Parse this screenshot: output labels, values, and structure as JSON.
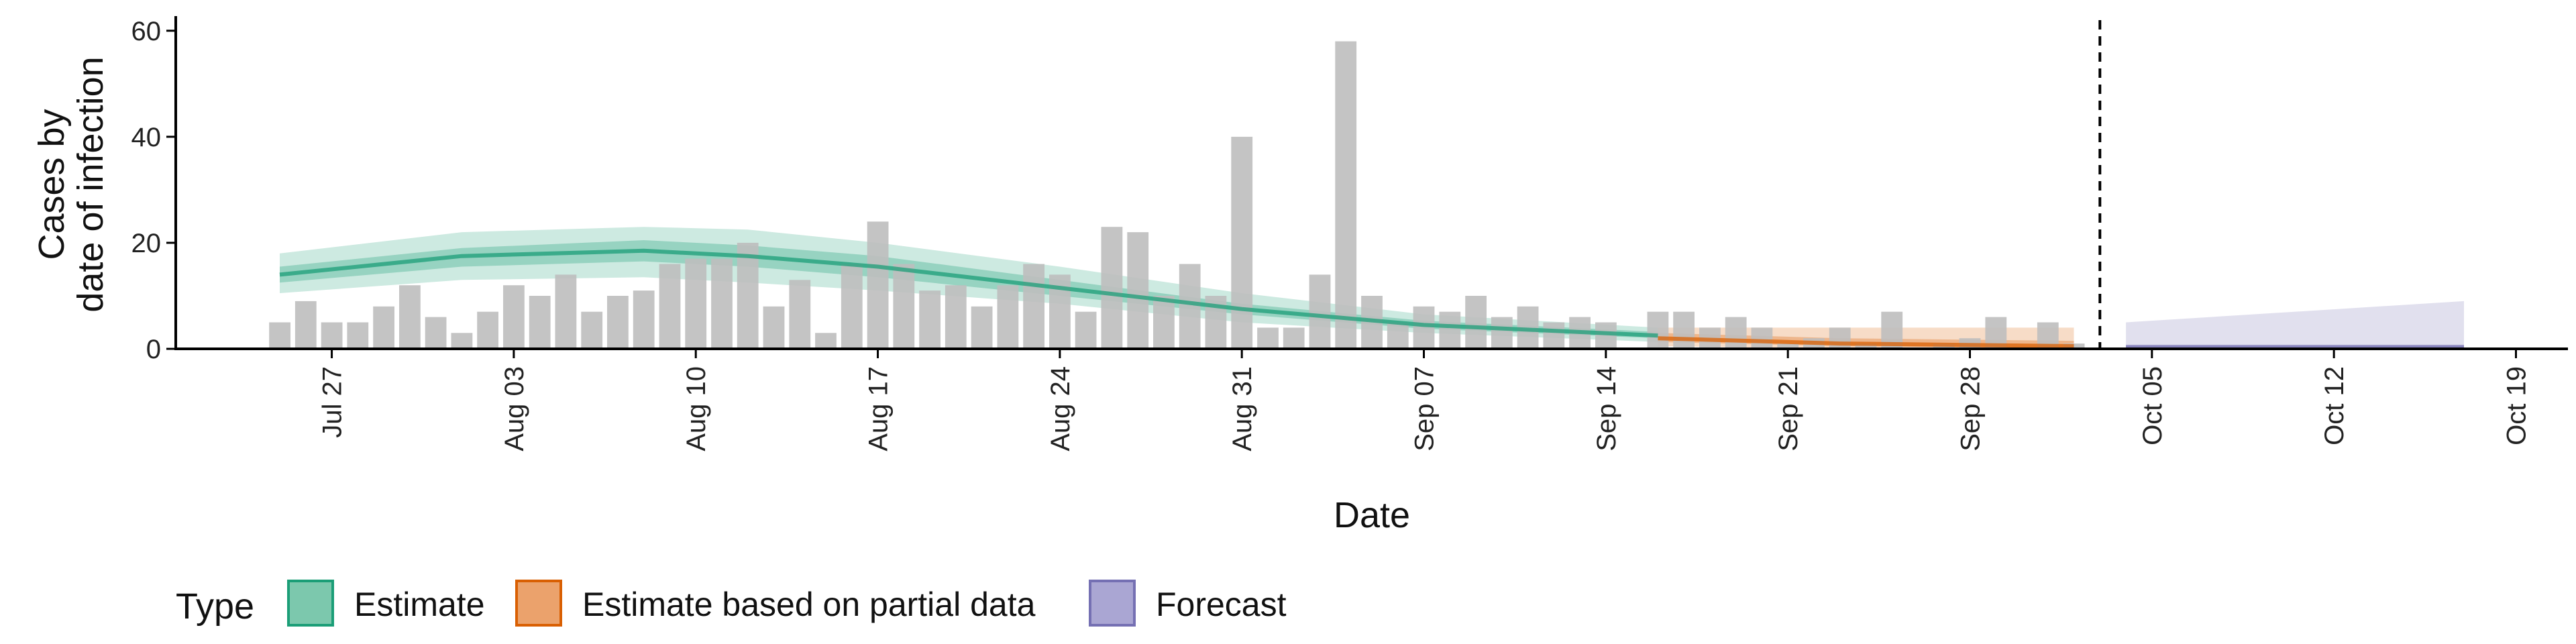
{
  "chart_data": {
    "type": "bar",
    "xlabel": "Date",
    "ylabel_lines": [
      "Cases by",
      "date of infection"
    ],
    "ylim": [
      0,
      62
    ],
    "yticks": [
      0,
      20,
      40,
      60
    ],
    "xlim": [
      "2020-07-21",
      "2020-10-21"
    ],
    "xticks": [
      {
        "date": "2020-07-27",
        "label": "Jul 27"
      },
      {
        "date": "2020-08-03",
        "label": "Aug 03"
      },
      {
        "date": "2020-08-10",
        "label": "Aug 10"
      },
      {
        "date": "2020-08-17",
        "label": "Aug 17"
      },
      {
        "date": "2020-08-24",
        "label": "Aug 24"
      },
      {
        "date": "2020-08-31",
        "label": "Aug 31"
      },
      {
        "date": "2020-09-07",
        "label": "Sep 07"
      },
      {
        "date": "2020-09-14",
        "label": "Sep 14"
      },
      {
        "date": "2020-09-21",
        "label": "Sep 21"
      },
      {
        "date": "2020-09-28",
        "label": "Sep 28"
      },
      {
        "date": "2020-10-05",
        "label": "Oct 05"
      },
      {
        "date": "2020-10-12",
        "label": "Oct 12"
      },
      {
        "date": "2020-10-19",
        "label": "Oct 19"
      }
    ],
    "bars": {
      "dates": [
        "2020-07-25",
        "2020-07-26",
        "2020-07-27",
        "2020-07-28",
        "2020-07-29",
        "2020-07-30",
        "2020-07-31",
        "2020-08-01",
        "2020-08-02",
        "2020-08-03",
        "2020-08-04",
        "2020-08-05",
        "2020-08-06",
        "2020-08-07",
        "2020-08-08",
        "2020-08-09",
        "2020-08-10",
        "2020-08-11",
        "2020-08-12",
        "2020-08-13",
        "2020-08-14",
        "2020-08-15",
        "2020-08-16",
        "2020-08-17",
        "2020-08-18",
        "2020-08-19",
        "2020-08-20",
        "2020-08-21",
        "2020-08-22",
        "2020-08-23",
        "2020-08-24",
        "2020-08-25",
        "2020-08-26",
        "2020-08-27",
        "2020-08-28",
        "2020-08-29",
        "2020-08-30",
        "2020-08-31",
        "2020-09-01",
        "2020-09-02",
        "2020-09-03",
        "2020-09-04",
        "2020-09-05",
        "2020-09-06",
        "2020-09-07",
        "2020-09-08",
        "2020-09-09",
        "2020-09-10",
        "2020-09-11",
        "2020-09-12",
        "2020-09-13",
        "2020-09-14",
        "2020-09-15",
        "2020-09-16",
        "2020-09-17",
        "2020-09-18",
        "2020-09-19",
        "2020-09-20",
        "2020-09-21",
        "2020-09-22",
        "2020-09-23",
        "2020-09-24",
        "2020-09-25",
        "2020-09-26",
        "2020-09-27",
        "2020-09-28",
        "2020-09-29",
        "2020-09-30",
        "2020-10-01",
        "2020-10-02"
      ],
      "values": [
        5,
        9,
        5,
        5,
        8,
        12,
        6,
        3,
        7,
        12,
        10,
        14,
        7,
        10,
        11,
        16,
        17,
        17,
        20,
        8,
        13,
        3,
        16,
        24,
        16,
        11,
        12,
        8,
        12,
        16,
        14,
        7,
        23,
        22,
        10,
        16,
        10,
        40,
        4,
        4,
        14,
        58,
        10,
        5,
        8,
        7,
        10,
        6,
        8,
        5,
        6,
        5,
        0,
        7,
        7,
        4,
        6,
        4,
        1,
        2,
        4,
        1,
        7,
        0,
        1,
        2,
        6,
        0,
        5,
        1
      ],
      "color": "#bebebe"
    },
    "series": [
      {
        "name": "Estimate",
        "color": "#1b9e77",
        "x": [
          "2020-07-25",
          "2020-08-01",
          "2020-08-08",
          "2020-08-12",
          "2020-08-17",
          "2020-08-24",
          "2020-08-31",
          "2020-09-07",
          "2020-09-16"
        ],
        "median": [
          14,
          17.5,
          18.5,
          17.5,
          15.5,
          11.5,
          7.5,
          4.5,
          2.5
        ],
        "lower_50": [
          12.5,
          15.5,
          16.5,
          15.5,
          13.5,
          10,
          6.5,
          3.8,
          2
        ],
        "upper_50": [
          15.5,
          19,
          20.5,
          19.5,
          17.5,
          13,
          8.5,
          5.3,
          3.2
        ],
        "lower_90": [
          10.5,
          13,
          13.5,
          12.5,
          11,
          8.5,
          5,
          3,
          1.3
        ],
        "upper_90": [
          18,
          22,
          23,
          22.5,
          20,
          15.5,
          10.5,
          6.5,
          4
        ]
      },
      {
        "name": "Estimate based on partial data",
        "color": "#d95f02",
        "x": [
          "2020-09-16",
          "2020-09-23",
          "2020-10-02"
        ],
        "median": [
          2,
          1,
          0.5
        ],
        "lower_50": [
          1.3,
          0.5,
          0.1
        ],
        "upper_50": [
          3,
          2,
          1.5
        ],
        "lower_90": [
          0.5,
          0,
          0
        ],
        "upper_90": [
          4,
          4,
          4
        ]
      },
      {
        "name": "Forecast",
        "color": "#7570b3",
        "x": [
          "2020-10-04",
          "2020-10-17"
        ],
        "median": [
          0.3,
          0.3
        ],
        "lower_50": [
          0,
          0
        ],
        "upper_50": [
          0.8,
          0.8
        ],
        "lower_90": [
          0,
          0
        ],
        "upper_90": [
          5,
          9
        ]
      }
    ],
    "vline": {
      "date": "2020-10-03",
      "style": "dashed"
    },
    "legend": {
      "position": "bottom-left",
      "title": "Type",
      "entries": [
        {
          "label": "Estimate",
          "fill": "#7cc8ad",
          "stroke": "#1b9e77"
        },
        {
          "label": "Estimate based on partial data",
          "fill": "#eba26c",
          "stroke": "#d95f02"
        },
        {
          "label": "Forecast",
          "fill": "#aaa6d3",
          "stroke": "#7570b3"
        }
      ]
    },
    "grid": false
  }
}
